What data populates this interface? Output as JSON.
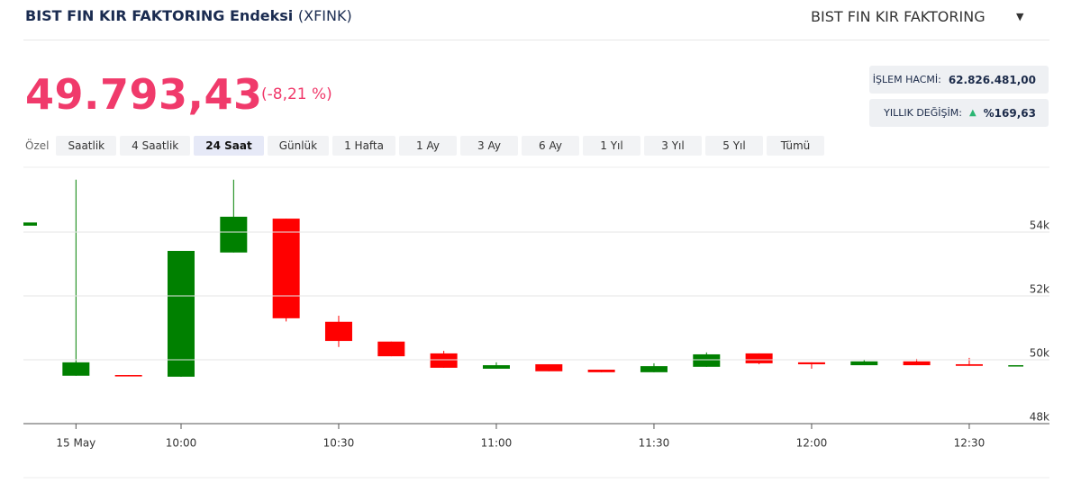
{
  "header": {
    "title": "BIST FIN KIR FAKTORING Endeksi",
    "code": "(XFINK)",
    "selector": "BIST FIN KIR FAKTORING"
  },
  "price": {
    "last": "49.793,43",
    "change": "(-8,21 %)"
  },
  "stats": [
    {
      "label": "İŞLEM HACMİ:",
      "value": "62.826.481,00"
    },
    {
      "label": "YILLIK DEĞİŞİM:",
      "value": "%169,63"
    }
  ],
  "ranges": {
    "label": "Özel",
    "options": [
      "Saatlik",
      "4 Saatlik",
      "24 Saat",
      "Günlük",
      "1 Hafta",
      "1 Ay",
      "3 Ay",
      "6 Ay",
      "1 Yıl",
      "3 Yıl",
      "5 Yıl",
      "Tümü"
    ],
    "active": 2
  },
  "chart_data": {
    "type": "candlestick",
    "categories": [
      null,
      "15 May",
      null,
      "10:00",
      null,
      null,
      "10:30",
      null,
      null,
      "11:00",
      null,
      null,
      "11:30",
      null,
      null,
      "12:00",
      null,
      null,
      "12:30",
      null
    ],
    "open": [
      54200,
      49500,
      49520,
      49470,
      53360,
      54420,
      51190,
      50570,
      50200,
      49720,
      49860,
      49690,
      49610,
      49780,
      50200,
      49920,
      49830,
      49950,
      49860,
      49790
    ],
    "high": [
      54300,
      55640,
      49520,
      53410,
      55640,
      54420,
      51380,
      50570,
      50280,
      49920,
      49860,
      49690,
      49890,
      50230,
      50200,
      49920,
      50000,
      50030,
      50060,
      49830
    ],
    "low": [
      54200,
      49500,
      49490,
      49470,
      53360,
      51200,
      50400,
      50110,
      49750,
      49720,
      49640,
      49610,
      49610,
      49780,
      49860,
      49720,
      49830,
      49830,
      49810,
      49790
    ],
    "close": [
      54300,
      49920,
      49490,
      53410,
      54480,
      51300,
      50590,
      50110,
      49750,
      49830,
      49640,
      49610,
      49800,
      50170,
      49890,
      49860,
      49950,
      49830,
      49810,
      49830
    ],
    "up_color": "#008000",
    "down_color": "#ff0000",
    "ylim": [
      48000,
      56000
    ],
    "yticks": [
      {
        "value": 48000,
        "label": "48k"
      },
      {
        "value": 50000,
        "label": "50k"
      },
      {
        "value": 52000,
        "label": "52k"
      },
      {
        "value": 54000,
        "label": "54k"
      }
    ],
    "grid": true
  }
}
